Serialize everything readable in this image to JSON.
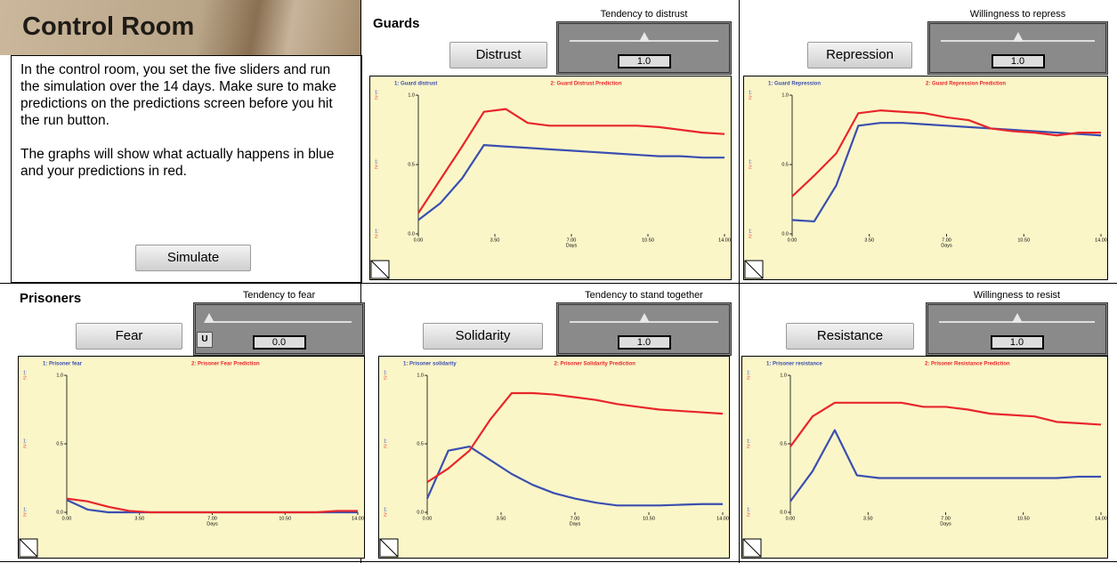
{
  "header": {
    "title": "Control Room"
  },
  "intro": [
    "In the control room, you set the five sliders and run the simulation over the 14 days. Make sure to make predictions on the predictions screen before you hit the run button.",
    "The graphs will show what actually happens in blue and your predictions in red."
  ],
  "simulate_button": "Simulate",
  "sections": [
    "Guards",
    "Prisoners"
  ],
  "controls": [
    {
      "caption": "Tendency to distrust",
      "button": "Distrust",
      "value": "1.0"
    },
    {
      "caption": "Willingness to repress",
      "button": "Repression",
      "value": "1.0"
    },
    {
      "caption": "Tendency to fear",
      "button": "Fear",
      "value": "0.0",
      "lock": "U"
    },
    {
      "caption": "Tendency to stand together",
      "button": "Solidarity",
      "value": "1.0"
    },
    {
      "caption": "Willingness to resist",
      "button": "Resistance",
      "value": "1.0"
    }
  ],
  "chart_data": [
    {
      "type": "line",
      "xlabel": "Days",
      "xlim": [
        0,
        14
      ],
      "ylim": [
        0,
        1
      ],
      "scale_markers": [
        "1:",
        "2:"
      ],
      "xticks": [
        {
          "value": 0,
          "label": "0.00"
        },
        {
          "value": 3.5,
          "label": "3.50"
        },
        {
          "value": 7,
          "label": "7.00"
        },
        {
          "value": 10.5,
          "label": "10.50"
        },
        {
          "value": 14,
          "label": "14.00"
        }
      ],
      "yticks": [
        {
          "value": 0,
          "label": "0.0"
        },
        {
          "value": 0.5,
          "label": "0.5"
        },
        {
          "value": 1,
          "label": "1.0"
        }
      ],
      "x": [
        0,
        1,
        2,
        3,
        4,
        5,
        6,
        7,
        8,
        9,
        10,
        11,
        12,
        13,
        14
      ],
      "series": [
        {
          "name": "1: Guard distrust",
          "color": "#3a4fb0",
          "values": [
            0.1,
            0.22,
            0.4,
            0.64,
            0.63,
            0.62,
            0.61,
            0.6,
            0.59,
            0.58,
            0.57,
            0.56,
            0.56,
            0.55,
            0.55
          ]
        },
        {
          "name": "2: Guard Distrust Prediction",
          "color": "#e8262b",
          "values": [
            0.15,
            0.39,
            0.63,
            0.88,
            0.9,
            0.8,
            0.78,
            0.78,
            0.78,
            0.78,
            0.78,
            0.77,
            0.75,
            0.73,
            0.72
          ]
        }
      ]
    },
    {
      "type": "line",
      "xlabel": "Days",
      "xlim": [
        0,
        14
      ],
      "ylim": [
        0,
        1
      ],
      "scale_markers": [
        "1:",
        "2:"
      ],
      "xticks": [
        {
          "value": 0,
          "label": "0.00"
        },
        {
          "value": 3.5,
          "label": "3.50"
        },
        {
          "value": 7,
          "label": "7.00"
        },
        {
          "value": 10.5,
          "label": "10.50"
        },
        {
          "value": 14,
          "label": "14.00"
        }
      ],
      "yticks": [
        {
          "value": 0,
          "label": "0.0"
        },
        {
          "value": 0.5,
          "label": "0.5"
        },
        {
          "value": 1,
          "label": "1.0"
        }
      ],
      "x": [
        0,
        1,
        2,
        3,
        4,
        5,
        6,
        7,
        8,
        9,
        10,
        11,
        12,
        13,
        14
      ],
      "series": [
        {
          "name": "1: Guard Repression",
          "color": "#3a4fb0",
          "values": [
            0.1,
            0.09,
            0.35,
            0.78,
            0.8,
            0.8,
            0.79,
            0.78,
            0.77,
            0.76,
            0.75,
            0.74,
            0.73,
            0.72,
            0.71
          ]
        },
        {
          "name": "2: Guard Repression Prediction",
          "color": "#e8262b",
          "values": [
            0.27,
            0.42,
            0.58,
            0.87,
            0.89,
            0.88,
            0.87,
            0.84,
            0.82,
            0.76,
            0.74,
            0.73,
            0.71,
            0.73,
            0.73
          ]
        }
      ]
    },
    {
      "type": "line",
      "xlabel": "Days",
      "xlim": [
        0,
        14
      ],
      "ylim": [
        0,
        1
      ],
      "scale_markers": [
        "1:",
        "2:"
      ],
      "xticks": [
        {
          "value": 0,
          "label": "0.00"
        },
        {
          "value": 3.5,
          "label": "3.50"
        },
        {
          "value": 7,
          "label": "7.00"
        },
        {
          "value": 10.5,
          "label": "10.50"
        },
        {
          "value": 14,
          "label": "14.00"
        }
      ],
      "yticks": [
        {
          "value": 0,
          "label": "0.0"
        },
        {
          "value": 0.5,
          "label": "0.5"
        },
        {
          "value": 1,
          "label": "1.0"
        }
      ],
      "x": [
        0,
        1,
        2,
        3,
        4,
        5,
        6,
        7,
        8,
        9,
        10,
        11,
        12,
        13,
        14
      ],
      "series": [
        {
          "name": "1: Prisoner fear",
          "color": "#3a4fb0",
          "values": [
            0.09,
            0.02,
            0,
            0,
            0,
            0,
            0,
            0,
            0,
            0,
            0,
            0,
            0,
            0,
            0
          ]
        },
        {
          "name": "2: Prisoner Fear Prediction",
          "color": "#e8262b",
          "values": [
            0.1,
            0.08,
            0.04,
            0.01,
            0,
            0,
            0,
            0,
            0,
            0,
            0,
            0,
            0,
            0.01,
            0.01
          ]
        }
      ]
    },
    {
      "type": "line",
      "xlabel": "Days",
      "xlim": [
        0,
        14
      ],
      "ylim": [
        0,
        1
      ],
      "scale_markers": [
        "1:",
        "2:"
      ],
      "xticks": [
        {
          "value": 0,
          "label": "0.00"
        },
        {
          "value": 3.5,
          "label": "3.50"
        },
        {
          "value": 7,
          "label": "7.00"
        },
        {
          "value": 10.5,
          "label": "10.50"
        },
        {
          "value": 14,
          "label": "14.00"
        }
      ],
      "yticks": [
        {
          "value": 0,
          "label": "0.0"
        },
        {
          "value": 0.5,
          "label": "0.5"
        },
        {
          "value": 1,
          "label": "1.0"
        }
      ],
      "x": [
        0,
        1,
        2,
        3,
        4,
        5,
        6,
        7,
        8,
        9,
        10,
        11,
        12,
        13,
        14
      ],
      "series": [
        {
          "name": "1: Prisoner solidarity",
          "color": "#3a4fb0",
          "values": [
            0.1,
            0.45,
            0.48,
            0.38,
            0.28,
            0.2,
            0.14,
            0.1,
            0.07,
            0.05,
            0.05,
            0.05,
            0.055,
            0.06,
            0.06
          ]
        },
        {
          "name": "2: Prisoner Solidarity Prediction",
          "color": "#e8262b",
          "values": [
            0.22,
            0.32,
            0.45,
            0.68,
            0.87,
            0.87,
            0.86,
            0.84,
            0.82,
            0.79,
            0.77,
            0.75,
            0.74,
            0.73,
            0.72
          ]
        }
      ]
    },
    {
      "type": "line",
      "xlabel": "Days",
      "xlim": [
        0,
        14
      ],
      "ylim": [
        0,
        1
      ],
      "scale_markers": [
        "1:",
        "2:"
      ],
      "xticks": [
        {
          "value": 0,
          "label": "0.00"
        },
        {
          "value": 3.5,
          "label": "3.50"
        },
        {
          "value": 7,
          "label": "7.00"
        },
        {
          "value": 10.5,
          "label": "10.50"
        },
        {
          "value": 14,
          "label": "14.00"
        }
      ],
      "yticks": [
        {
          "value": 0,
          "label": "0.0"
        },
        {
          "value": 0.5,
          "label": "0.5"
        },
        {
          "value": 1,
          "label": "1.0"
        }
      ],
      "x": [
        0,
        1,
        2,
        3,
        4,
        5,
        6,
        7,
        8,
        9,
        10,
        11,
        12,
        13,
        14
      ],
      "series": [
        {
          "name": "1: Prisoner resistance",
          "color": "#3a4fb0",
          "values": [
            0.08,
            0.3,
            0.6,
            0.27,
            0.25,
            0.25,
            0.25,
            0.25,
            0.25,
            0.25,
            0.25,
            0.25,
            0.25,
            0.26,
            0.26
          ]
        },
        {
          "name": "2: Prisoner Resistance Prediction",
          "color": "#e8262b",
          "values": [
            0.48,
            0.7,
            0.8,
            0.8,
            0.8,
            0.8,
            0.77,
            0.77,
            0.75,
            0.72,
            0.71,
            0.7,
            0.66,
            0.65,
            0.64
          ]
        }
      ]
    }
  ]
}
